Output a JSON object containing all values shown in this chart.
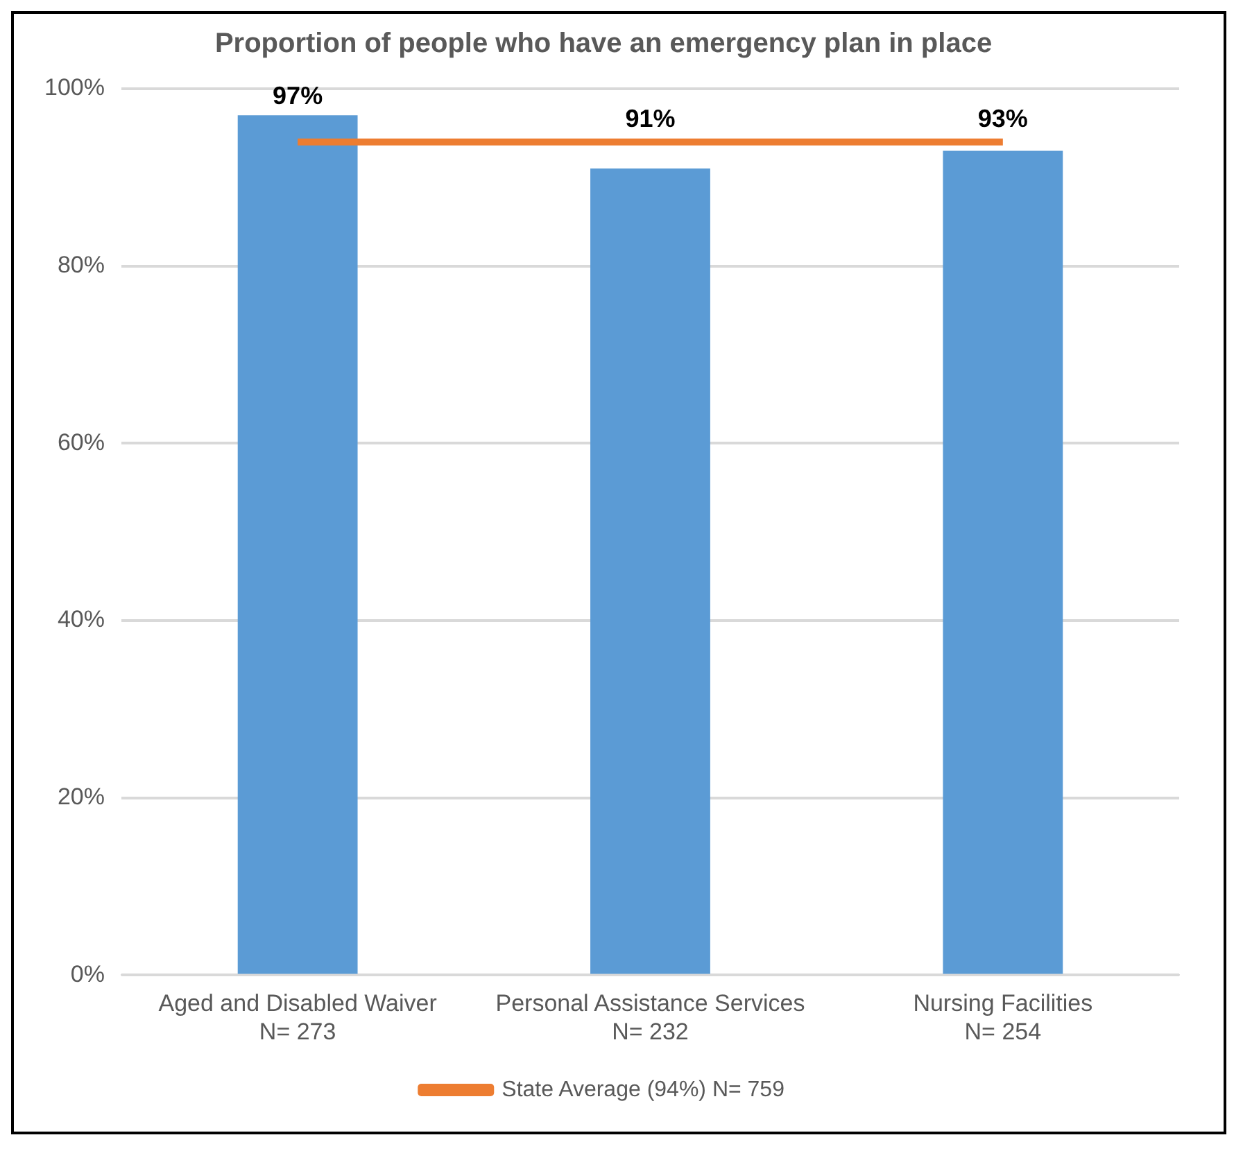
{
  "chart_data": {
    "type": "bar",
    "title": "Proportion of people who have an emergency plan in place",
    "categories": [
      "Aged and Disabled Waiver\nN= 273",
      "Personal Assistance Services\nN= 232",
      "Nursing Facilities\nN= 254"
    ],
    "series": [
      {
        "color": "#5b9bd5",
        "values": [
          97,
          91,
          93
        ],
        "value_labels": [
          "97%",
          "91%",
          "93%"
        ]
      },
      {
        "type": "line",
        "name": "State Average (94%) N= 759",
        "color": "#ed7d31",
        "values": [
          94,
          94,
          94
        ]
      }
    ],
    "ylim": [
      0,
      100
    ],
    "yticks": [
      {
        "value": 0,
        "label": "0%"
      },
      {
        "value": 20,
        "label": "20%"
      },
      {
        "value": 40,
        "label": "40%"
      },
      {
        "value": 60,
        "label": "60%"
      },
      {
        "value": 80,
        "label": "80%"
      },
      {
        "value": 100,
        "label": "100%"
      }
    ],
    "grid": "y",
    "legend": "bottom",
    "marker": "none"
  }
}
